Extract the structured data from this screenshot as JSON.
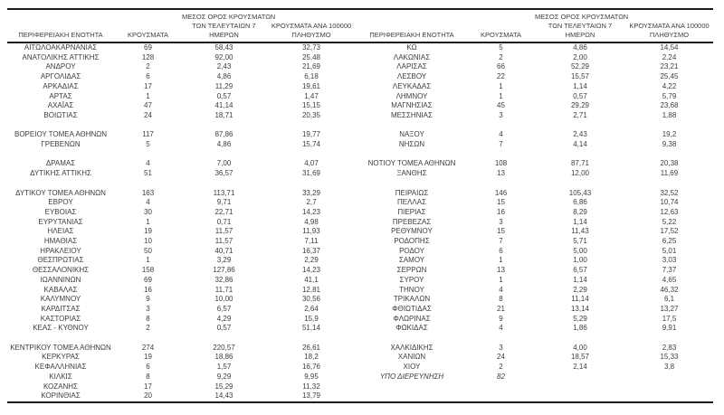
{
  "page": {
    "background_color": "#ffffff",
    "text_color": "#3d3d3d",
    "rule_color": "#1b1b1b"
  },
  "table": {
    "header": {
      "region": "ΠΕΡΙΦΕΡΕΙΑΚΗ ΕΝΟΤΗΤΑ",
      "cases": "ΚΡΟΥΣΜΑΤΑ",
      "avg7_lines": [
        "ΜΕΣΟΣ ΟΡΟΣ ΚΡΟΥΣΜΑΤΩΝ",
        "ΤΩΝ ΤΕΛΕΥΤΑΙΩΝ 7",
        "ΗΜΕΡΩΝ"
      ],
      "per100k_lines": [
        "ΚΡΟΥΣΜΑΤΑ ΑΝΑ 100000",
        "ΠΛΗΘΥΣΜΟ"
      ]
    },
    "italic_rows": [
      "ΥΠΟ ΔΙΕΡΕΥΝΗΣΗ"
    ],
    "left_rows": [
      [
        "ΑΙΤΩΛΟΑΚΑΡΝΑΝΙΑΣ",
        "69",
        "58,43",
        "32,73"
      ],
      [
        "ΑΝΑΤΟΛΙΚΗΣ ΑΤΤΙΚΗΣ",
        "128",
        "92,00",
        "25,48"
      ],
      [
        "ΑΝΔΡΟΥ",
        "2",
        "2,43",
        "21,69"
      ],
      [
        "ΑΡΓΟΛΙΔΑΣ",
        "6",
        "4,86",
        "6,18"
      ],
      [
        "ΑΡΚΑΔΙΑΣ",
        "17",
        "11,29",
        "19,61"
      ],
      [
        "ΑΡΤΑΣ",
        "1",
        "0,57",
        "1,47"
      ],
      [
        "ΑΧΑΪΑΣ",
        "47",
        "41,14",
        "15,15"
      ],
      [
        "ΒΟΙΩΤΙΑΣ",
        "24",
        "18,71",
        "20,35"
      ],
      null,
      [
        "ΒΟΡΕΙΟΥ ΤΟΜΕΑ ΑΘΗΝΩΝ",
        "117",
        "87,86",
        "19,77"
      ],
      [
        "ΓΡΕΒΕΝΩΝ",
        "5",
        "4,86",
        "15,74"
      ],
      null,
      [
        "ΔΡΑΜΑΣ",
        "4",
        "7,00",
        "4,07"
      ],
      [
        "ΔΥΤΙΚΗΣ ΑΤΤΙΚΗΣ",
        "51",
        "36,57",
        "31,69"
      ],
      null,
      [
        "ΔΥΤΙΚΟΥ ΤΟΜΕΑ ΑΘΗΝΩΝ",
        "163",
        "113,71",
        "33,29"
      ],
      [
        "ΕΒΡΟΥ",
        "4",
        "9,71",
        "2,7"
      ],
      [
        "ΕΥΒΟΙΑΣ",
        "30",
        "22,71",
        "14,23"
      ],
      [
        "ΕΥΡΥΤΑΝΙΑΣ",
        "1",
        "0,71",
        "4,98"
      ],
      [
        "ΗΛΕΙΑΣ",
        "19",
        "11,57",
        "11,93"
      ],
      [
        "ΗΜΑΘΙΑΣ",
        "10",
        "11,57",
        "7,11"
      ],
      [
        "ΗΡΑΚΛΕΙΟΥ",
        "50",
        "40,71",
        "16,37"
      ],
      [
        "ΘΕΣΠΡΩΤΙΑΣ",
        "1",
        "3,29",
        "2,29"
      ],
      [
        "ΘΕΣΣΑΛΟΝΙΚΗΣ",
        "158",
        "127,86",
        "14,23"
      ],
      [
        "ΙΩΑΝΝΙΝΩΝ",
        "69",
        "32,86",
        "41,1"
      ],
      [
        "ΚΑΒΑΛΑΣ",
        "16",
        "11,71",
        "12,81"
      ],
      [
        "ΚΑΛΥΜΝΟΥ",
        "9",
        "10,00",
        "30,56"
      ],
      [
        "ΚΑΡΔΙΤΣΑΣ",
        "3",
        "6,57",
        "2,64"
      ],
      [
        "ΚΑΣΤΟΡΙΑΣ",
        "8",
        "4,29",
        "15,9"
      ],
      [
        "ΚΕΑΣ - ΚΥΘΝΟΥ",
        "2",
        "0,57",
        "51,14"
      ],
      null,
      [
        "ΚΕΝΤΡΙΚΟΥ ΤΟΜΕΑ ΑΘΗΝΩΝ",
        "274",
        "220,57",
        "26,61"
      ],
      [
        "ΚΕΡΚΥΡΑΣ",
        "19",
        "18,86",
        "18,2"
      ],
      [
        "ΚΕΦΑΛΛΗΝΙΑΣ",
        "6",
        "1,57",
        "16,76"
      ],
      [
        "ΚΙΛΚΙΣ",
        "8",
        "9,29",
        "9,95"
      ],
      [
        "ΚΟΖΑΝΗΣ",
        "17",
        "15,29",
        "11,32"
      ],
      [
        "ΚΟΡΙΝΘΙΑΣ",
        "20",
        "14,43",
        "13,79"
      ]
    ],
    "right_rows": [
      [
        "ΚΩ",
        "5",
        "4,86",
        "14,54"
      ],
      [
        "ΛΑΚΩΝΙΑΣ",
        "2",
        "2,00",
        "2,24"
      ],
      [
        "ΛΑΡΙΣΑΣ",
        "66",
        "52,29",
        "23,21"
      ],
      [
        "ΛΕΣΒΟΥ",
        "22",
        "15,57",
        "25,45"
      ],
      [
        "ΛΕΥΚΑΔΑΣ",
        "1",
        "1,14",
        "4,22"
      ],
      [
        "ΛΗΜΝΟΥ",
        "1",
        "0,57",
        "5,79"
      ],
      [
        "ΜΑΓΝΗΣΙΑΣ",
        "45",
        "29,29",
        "23,68"
      ],
      [
        "ΜΕΣΣΗΝΙΑΣ",
        "3",
        "2,71",
        "1,88"
      ],
      null,
      [
        "ΝΑΞΟΥ",
        "4",
        "2,43",
        "19,2"
      ],
      [
        "ΝΗΣΩΝ",
        "7",
        "4,14",
        "9,38"
      ],
      null,
      [
        "ΝΟΤΙΟΥ ΤΟΜΕΑ ΑΘΗΝΩΝ",
        "108",
        "87,71",
        "20,38"
      ],
      [
        "ΞΑΝΘΗΣ",
        "13",
        "12,00",
        "11,69"
      ],
      null,
      [
        "ΠΕΙΡΑΙΩΣ",
        "146",
        "105,43",
        "32,52"
      ],
      [
        "ΠΕΛΛΑΣ",
        "15",
        "6,86",
        "10,74"
      ],
      [
        "ΠΙΕΡΙΑΣ",
        "16",
        "8,29",
        "12,63"
      ],
      [
        "ΠΡΕΒΕΖΑΣ",
        "3",
        "1,14",
        "5,22"
      ],
      [
        "ΡΕΘΥΜΝΟΥ",
        "15",
        "11,43",
        "17,52"
      ],
      [
        "ΡΟΔΟΠΗΣ",
        "7",
        "5,71",
        "6,25"
      ],
      [
        "ΡΟΔΟΥ",
        "6",
        "5,00",
        "5,01"
      ],
      [
        "ΣΑΜΟΥ",
        "1",
        "1,00",
        "3,03"
      ],
      [
        "ΣΕΡΡΩΝ",
        "13",
        "6,57",
        "7,37"
      ],
      [
        "ΣΥΡΟΥ",
        "1",
        "1,14",
        "4,65"
      ],
      [
        "ΤΗΝΟΥ",
        "4",
        "2,29",
        "46,32"
      ],
      [
        "ΤΡΙΚΑΛΩΝ",
        "8",
        "11,14",
        "6,1"
      ],
      [
        "ΦΘΙΩΤΙΔΑΣ",
        "21",
        "13,14",
        "13,27"
      ],
      [
        "ΦΛΩΡΙΝΑΣ",
        "9",
        "5,29",
        "17,5"
      ],
      [
        "ΦΩΚΙΔΑΣ",
        "4",
        "1,86",
        "9,91"
      ],
      null,
      [
        "ΧΑΛΚΙΔΙΚΗΣ",
        "3",
        "4,00",
        "2,83"
      ],
      [
        "ΧΑΝΙΩΝ",
        "24",
        "18,57",
        "15,33"
      ],
      [
        "ΧΙΟΥ",
        "2",
        "2,14",
        "3,8"
      ],
      [
        "ΥΠΟ ΔΙΕΡΕΥΝΗΣΗ",
        "82",
        "",
        ""
      ],
      null,
      null
    ]
  }
}
